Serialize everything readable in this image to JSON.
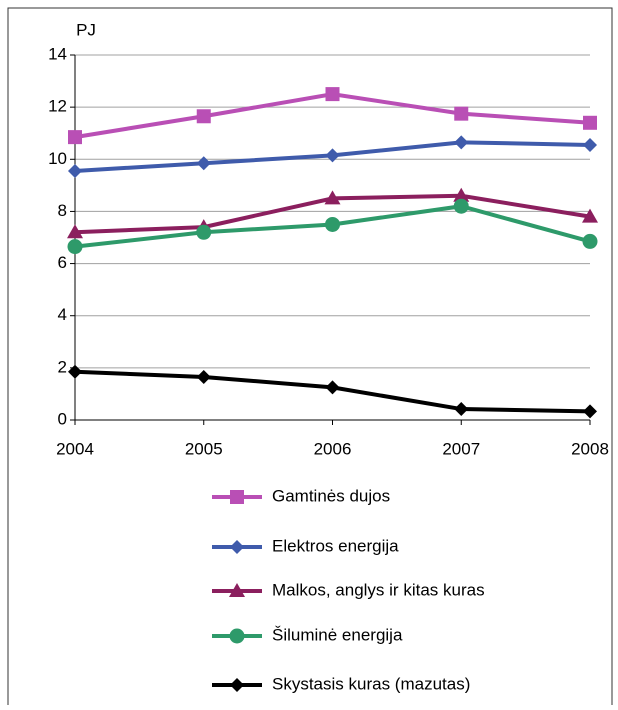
{
  "chart_data": {
    "type": "line",
    "ylabel": "PJ",
    "categories": [
      "2004",
      "2005",
      "2006",
      "2007",
      "2008"
    ],
    "ylim": [
      0,
      14
    ],
    "yticks": [
      0,
      2,
      4,
      6,
      8,
      10,
      12,
      14
    ],
    "grid": true,
    "legend": "bottom",
    "series": [
      {
        "name": "Gamtinės dujos",
        "color": "#b94fb5",
        "marker": "square",
        "values": [
          10.85,
          11.65,
          12.5,
          11.75,
          11.4
        ]
      },
      {
        "name": "Elektros energija",
        "color": "#3f5bab",
        "marker": "diamond",
        "values": [
          9.55,
          9.85,
          10.15,
          10.65,
          10.55
        ]
      },
      {
        "name": "Malkos, anglys ir kitas kuras",
        "color": "#8b1f5e",
        "marker": "triangle",
        "values": [
          7.2,
          7.4,
          8.5,
          8.6,
          7.8
        ]
      },
      {
        "name": "Šiluminė energija",
        "color": "#2e9a6a",
        "marker": "circle",
        "values": [
          6.65,
          7.2,
          7.5,
          8.2,
          6.85
        ]
      },
      {
        "name": "Skystasis kuras (mazutas)",
        "color": "#000000",
        "marker": "diamond",
        "values": [
          1.85,
          1.65,
          1.25,
          0.42,
          0.33
        ]
      }
    ]
  }
}
